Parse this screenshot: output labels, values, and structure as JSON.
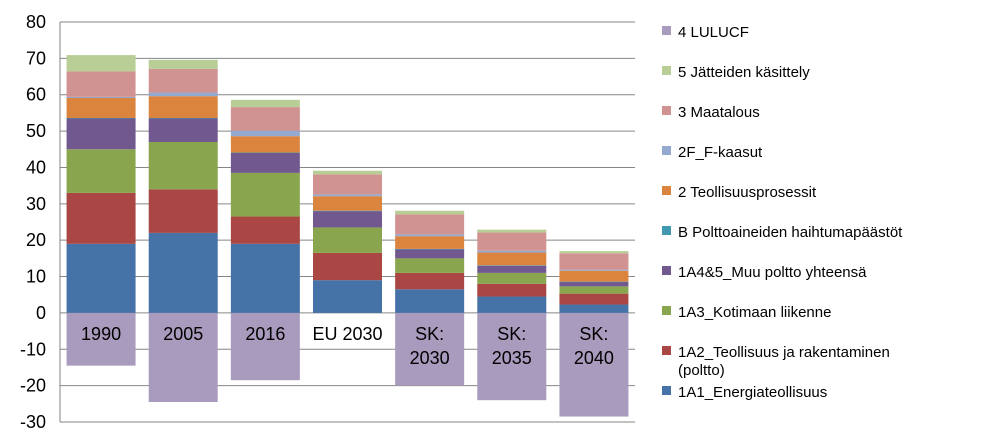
{
  "chart_data": {
    "type": "bar",
    "stacked": true,
    "categories": [
      "1990",
      "2005",
      "2016",
      "EU 2030",
      "SK:\n2030",
      "SK:\n2035",
      "SK:\n2040"
    ],
    "ylim": [
      -30,
      80
    ],
    "yticks": [
      -30,
      -20,
      -10,
      0,
      10,
      20,
      30,
      40,
      50,
      60,
      70,
      80
    ],
    "grid": "horizontal",
    "legend_position": "right",
    "series": [
      {
        "name": "1A1_Energiateollisuus",
        "color": "#4572A7",
        "values": [
          19,
          22,
          19,
          9,
          6.5,
          4.5,
          2.3
        ]
      },
      {
        "name": "1A2_Teollisuus ja rakentaminen (poltto)",
        "color": "#AA4643",
        "values": [
          14,
          12,
          7.5,
          7.5,
          4.5,
          3.5,
          3
        ]
      },
      {
        "name": "1A3_Kotimaan liikenne",
        "color": "#89A54E",
        "values": [
          12,
          13,
          12,
          7,
          4,
          3,
          2
        ]
      },
      {
        "name": "1A4&5_Muu poltto yhteensä",
        "color": "#71588F",
        "values": [
          8.5,
          6.5,
          5.5,
          4.5,
          2.5,
          2,
          1.2
        ]
      },
      {
        "name": "B Polttoaineiden haihtumapäästöt",
        "color": "#4198AF",
        "values": [
          0.1,
          0.1,
          0.1,
          0.1,
          0.1,
          0.1,
          0.1
        ]
      },
      {
        "name": "2 Teollisuusprosessit",
        "color": "#DB843D",
        "values": [
          5.5,
          6,
          4.5,
          4,
          3.5,
          3.5,
          3
        ]
      },
      {
        "name": "2F_F-kaasut",
        "color": "#93A9CF",
        "values": [
          0.3,
          1,
          1.5,
          0.5,
          0.5,
          0.5,
          0.3
        ]
      },
      {
        "name": "3 Maatalous",
        "color": "#D19392",
        "values": [
          7,
          6.5,
          6.5,
          5.5,
          5.5,
          5,
          4.5
        ]
      },
      {
        "name": "5 Jätteiden käsittely",
        "color": "#B9CD96",
        "values": [
          4.5,
          2.5,
          2,
          1,
          1,
          0.8,
          0.6
        ]
      },
      {
        "name": "4 LULUCF",
        "color": "#A99BBD",
        "values": [
          -14.5,
          -24.5,
          -18.5,
          0,
          -20,
          -24,
          -28.5
        ]
      }
    ]
  }
}
